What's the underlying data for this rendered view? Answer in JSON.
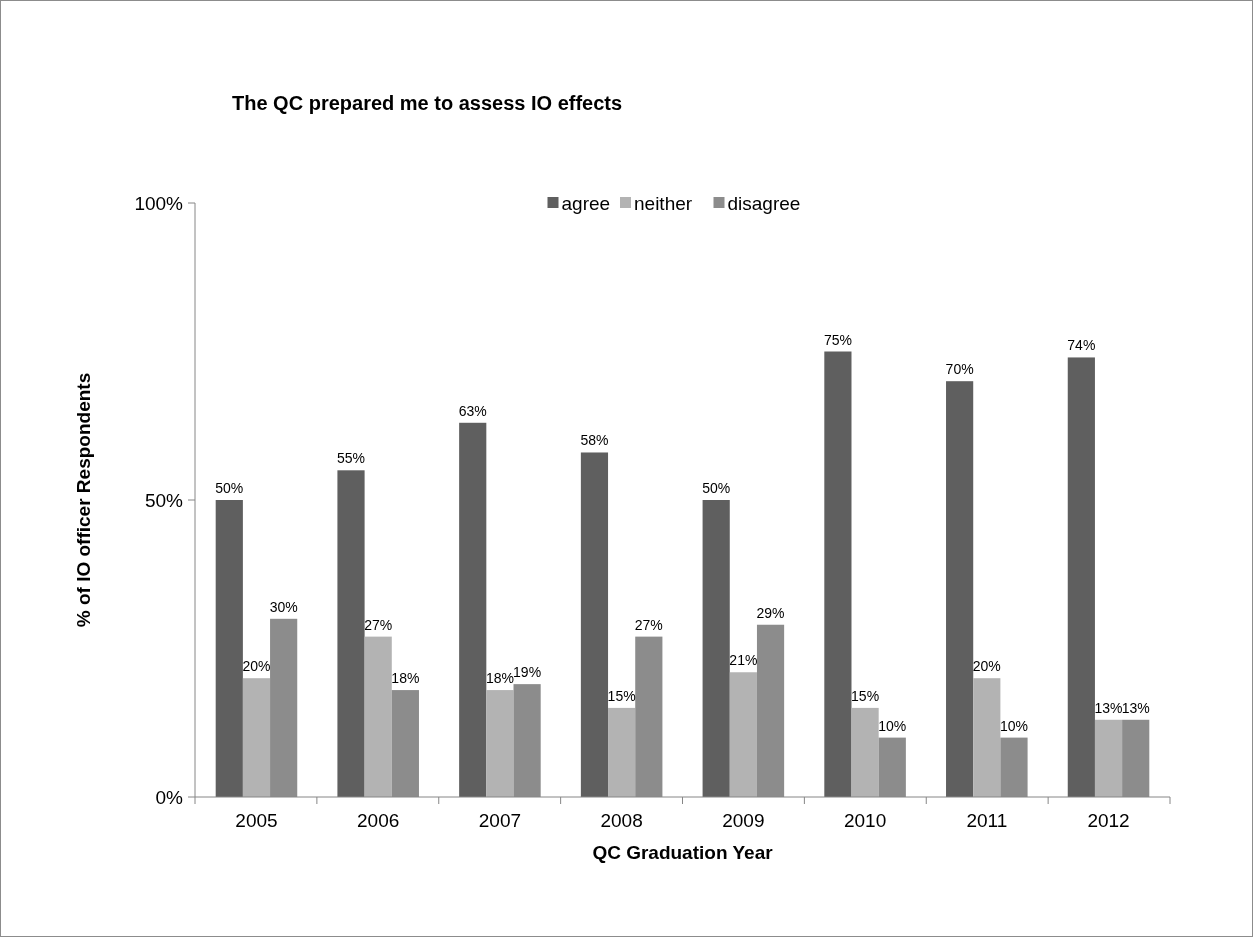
{
  "chart_data": {
    "type": "bar",
    "title": "The QC prepared me to assess IO effects",
    "xlabel": "QC Graduation Year",
    "ylabel": "% of IO officer Respondents",
    "categories": [
      "2005",
      "2006",
      "2007",
      "2008",
      "2009",
      "2010",
      "2011",
      "2012"
    ],
    "series": [
      {
        "name": "agree",
        "color": "#5f5f5f",
        "values": [
          50,
          55,
          63,
          58,
          50,
          75,
          70,
          74
        ],
        "value_labels": [
          "50%",
          "55%",
          "63%",
          "58%",
          "50%",
          "75%",
          "70%",
          "74%"
        ]
      },
      {
        "name": "neither",
        "color": "#b3b3b3",
        "values": [
          20,
          27,
          18,
          15,
          21,
          15,
          20,
          13
        ],
        "value_labels": [
          "20%",
          "27%",
          "18%",
          "15%",
          "21%",
          "15%",
          "20%",
          "13%"
        ]
      },
      {
        "name": "disagree",
        "color": "#8c8c8c",
        "values": [
          30,
          18,
          19,
          27,
          29,
          10,
          10,
          13
        ],
        "value_labels": [
          "30%",
          "18%",
          "19%",
          "27%",
          "29%",
          "10%",
          "10%",
          "13%"
        ]
      }
    ],
    "ylim": [
      0,
      100
    ],
    "yticks": [
      {
        "value": 0,
        "label": "0%"
      },
      {
        "value": 50,
        "label": "50%"
      },
      {
        "value": 100,
        "label": "100%"
      }
    ],
    "legend": "top",
    "grid": false
  }
}
